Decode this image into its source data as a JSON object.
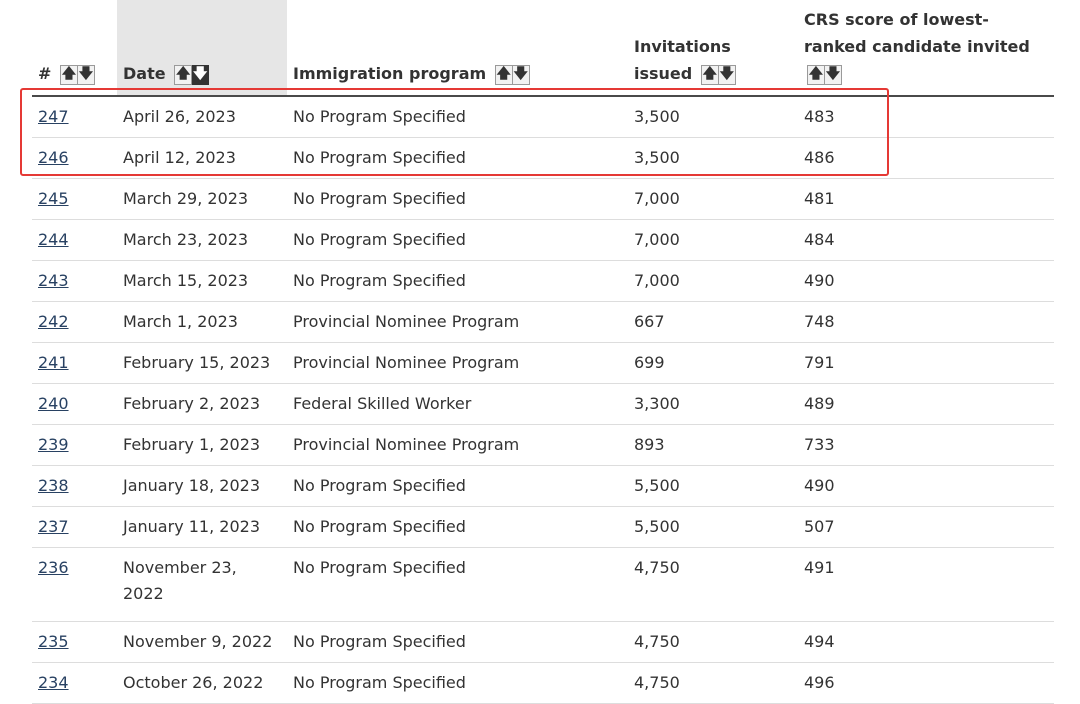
{
  "table": {
    "headers": {
      "num": "#",
      "date": "Date",
      "program": "Immigration program",
      "invitations": "Invitations issued",
      "crs": "CRS score of lowest-ranked candidate invited"
    },
    "sort": {
      "up_icon": "arrow-up-icon",
      "down_icon": "arrow-down-icon",
      "active_column": "date",
      "active_direction": "descending"
    },
    "rows": [
      {
        "num": "247",
        "date": "April 26, 2023",
        "program": "No Program Specified",
        "invitations": "3,500",
        "crs": "483"
      },
      {
        "num": "246",
        "date": "April 12, 2023",
        "program": "No Program Specified",
        "invitations": "3,500",
        "crs": "486"
      },
      {
        "num": "245",
        "date": "March 29, 2023",
        "program": "No Program Specified",
        "invitations": "7,000",
        "crs": "481"
      },
      {
        "num": "244",
        "date": "March 23, 2023",
        "program": "No Program Specified",
        "invitations": "7,000",
        "crs": "484"
      },
      {
        "num": "243",
        "date": "March 15, 2023",
        "program": "No Program Specified",
        "invitations": "7,000",
        "crs": "490"
      },
      {
        "num": "242",
        "date": "March 1, 2023",
        "program": "Provincial Nominee Program",
        "invitations": "667",
        "crs": "748"
      },
      {
        "num": "241",
        "date": "February 15, 2023",
        "program": "Provincial Nominee Program",
        "invitations": "699",
        "crs": "791"
      },
      {
        "num": "240",
        "date": "February 2, 2023",
        "program": "Federal Skilled Worker",
        "invitations": "3,300",
        "crs": "489"
      },
      {
        "num": "239",
        "date": "February 1, 2023",
        "program": "Provincial Nominee Program",
        "invitations": "893",
        "crs": "733"
      },
      {
        "num": "238",
        "date": "January 18, 2023",
        "program": "No Program Specified",
        "invitations": "5,500",
        "crs": "490"
      },
      {
        "num": "237",
        "date": "January 11, 2023",
        "program": "No Program Specified",
        "invitations": "5,500",
        "crs": "507"
      },
      {
        "num": "236",
        "date": "November 23, 2022",
        "program": "No Program Specified",
        "invitations": "4,750",
        "crs": "491"
      },
      {
        "num": "235",
        "date": "November 9, 2022",
        "program": "No Program Specified",
        "invitations": "4,750",
        "crs": "494"
      },
      {
        "num": "234",
        "date": "October 26, 2022",
        "program": "No Program Specified",
        "invitations": "4,750",
        "crs": "496"
      }
    ]
  },
  "highlight": {
    "color": "#e53935"
  }
}
